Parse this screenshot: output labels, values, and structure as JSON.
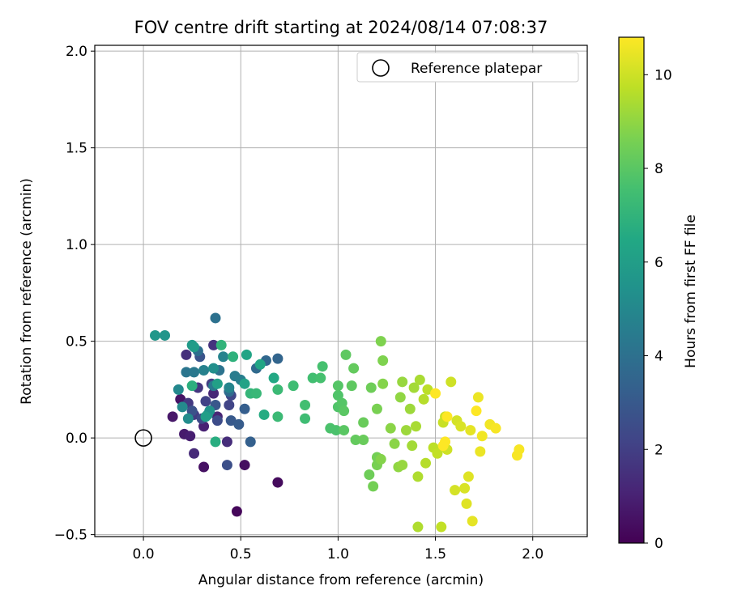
{
  "chart_data": {
    "type": "scatter",
    "title": "FOV centre drift starting at 2024/08/14 07:08:37",
    "xlabel": "Angular distance from reference (arcmin)",
    "ylabel": "Rotation from reference (arcmin)",
    "xlim": [
      -0.25,
      2.28
    ],
    "ylim": [
      -0.51,
      2.03
    ],
    "xticks": [
      0.0,
      0.5,
      1.0,
      1.5,
      2.0
    ],
    "xtick_labels": [
      "0.0",
      "0.5",
      "1.0",
      "1.5",
      "2.0"
    ],
    "yticks": [
      -0.5,
      0.0,
      0.5,
      1.0,
      1.5,
      2.0
    ],
    "ytick_labels": [
      "−0.5",
      "0.0",
      "0.5",
      "1.0",
      "1.5",
      "2.0"
    ],
    "grid": true,
    "legend": {
      "position": "upper right",
      "entries": [
        "Reference platepar"
      ]
    },
    "reference_point": {
      "x": 0.0,
      "y": 0.0,
      "label": "Reference platepar"
    },
    "colorbar": {
      "label": "Hours from first FF file",
      "colormap": "viridis",
      "range": [
        0,
        10.8
      ],
      "ticks": [
        0,
        2,
        4,
        6,
        8,
        10
      ],
      "tick_labels": [
        "0",
        "2",
        "4",
        "6",
        "8",
        "10"
      ]
    },
    "points": [
      {
        "x": 0.48,
        "y": -0.38,
        "c": 0.2
      },
      {
        "x": 0.69,
        "y": -0.23,
        "c": 0.3
      },
      {
        "x": 0.52,
        "y": -0.14,
        "c": 0.4
      },
      {
        "x": 0.31,
        "y": -0.15,
        "c": 0.5
      },
      {
        "x": 0.19,
        "y": 0.2,
        "c": 0.6
      },
      {
        "x": 0.15,
        "y": 0.11,
        "c": 0.7
      },
      {
        "x": 0.21,
        "y": 0.02,
        "c": 0.8
      },
      {
        "x": 0.24,
        "y": 0.01,
        "c": 0.9
      },
      {
        "x": 0.31,
        "y": 0.06,
        "c": 1.0
      },
      {
        "x": 0.38,
        "y": 0.11,
        "c": 1.1
      },
      {
        "x": 0.36,
        "y": 0.23,
        "c": 1.2
      },
      {
        "x": 0.26,
        "y": -0.08,
        "c": 1.3
      },
      {
        "x": 0.43,
        "y": -0.02,
        "c": 1.4
      },
      {
        "x": 0.22,
        "y": 0.43,
        "c": 1.5
      },
      {
        "x": 0.36,
        "y": 0.48,
        "c": 1.6
      },
      {
        "x": 0.28,
        "y": 0.26,
        "c": 1.7
      },
      {
        "x": 0.23,
        "y": 0.18,
        "c": 1.8
      },
      {
        "x": 0.26,
        "y": 0.12,
        "c": 1.9
      },
      {
        "x": 0.35,
        "y": 0.28,
        "c": 2.0
      },
      {
        "x": 0.32,
        "y": 0.19,
        "c": 2.1
      },
      {
        "x": 0.44,
        "y": 0.17,
        "c": 2.2
      },
      {
        "x": 0.45,
        "y": 0.22,
        "c": 2.3
      },
      {
        "x": 0.3,
        "y": 0.1,
        "c": 2.4
      },
      {
        "x": 0.38,
        "y": 0.09,
        "c": 2.5
      },
      {
        "x": 0.43,
        "y": -0.14,
        "c": 2.6
      },
      {
        "x": 0.25,
        "y": 0.14,
        "c": 2.7
      },
      {
        "x": 0.29,
        "y": 0.42,
        "c": 2.8
      },
      {
        "x": 0.37,
        "y": 0.17,
        "c": 2.9
      },
      {
        "x": 0.45,
        "y": 0.09,
        "c": 3.0
      },
      {
        "x": 0.49,
        "y": 0.07,
        "c": 3.1
      },
      {
        "x": 0.52,
        "y": 0.15,
        "c": 3.2
      },
      {
        "x": 0.55,
        "y": -0.02,
        "c": 3.3
      },
      {
        "x": 0.69,
        "y": 0.41,
        "c": 3.5
      },
      {
        "x": 0.63,
        "y": 0.4,
        "c": 3.6
      },
      {
        "x": 0.58,
        "y": 0.36,
        "c": 3.7
      },
      {
        "x": 0.44,
        "y": 0.24,
        "c": 3.8
      },
      {
        "x": 0.28,
        "y": 0.45,
        "c": 3.9
      },
      {
        "x": 0.37,
        "y": 0.62,
        "c": 4.0
      },
      {
        "x": 0.39,
        "y": 0.35,
        "c": 4.1
      },
      {
        "x": 0.22,
        "y": 0.34,
        "c": 4.2
      },
      {
        "x": 0.26,
        "y": 0.34,
        "c": 4.3
      },
      {
        "x": 0.36,
        "y": 0.27,
        "c": 4.4
      },
      {
        "x": 0.47,
        "y": 0.32,
        "c": 4.5
      },
      {
        "x": 0.5,
        "y": 0.3,
        "c": 4.6
      },
      {
        "x": 0.31,
        "y": 0.35,
        "c": 4.7
      },
      {
        "x": 0.41,
        "y": 0.42,
        "c": 4.8
      },
      {
        "x": 0.44,
        "y": 0.26,
        "c": 4.9
      },
      {
        "x": 0.18,
        "y": 0.25,
        "c": 5.0
      },
      {
        "x": 0.2,
        "y": 0.16,
        "c": 5.1
      },
      {
        "x": 0.23,
        "y": 0.1,
        "c": 5.2
      },
      {
        "x": 0.36,
        "y": 0.36,
        "c": 5.3
      },
      {
        "x": 0.33,
        "y": 0.12,
        "c": 5.4
      },
      {
        "x": 0.34,
        "y": 0.14,
        "c": 5.5
      },
      {
        "x": 0.11,
        "y": 0.53,
        "c": 5.6
      },
      {
        "x": 0.06,
        "y": 0.53,
        "c": 5.7
      },
      {
        "x": 0.25,
        "y": 0.48,
        "c": 5.8
      },
      {
        "x": 0.26,
        "y": 0.47,
        "c": 5.9
      },
      {
        "x": 0.32,
        "y": 0.11,
        "c": 6.0
      },
      {
        "x": 0.38,
        "y": 0.28,
        "c": 6.1
      },
      {
        "x": 0.52,
        "y": 0.28,
        "c": 6.2
      },
      {
        "x": 0.53,
        "y": 0.43,
        "c": 6.3
      },
      {
        "x": 0.6,
        "y": 0.38,
        "c": 6.4
      },
      {
        "x": 0.67,
        "y": 0.31,
        "c": 6.5
      },
      {
        "x": 0.62,
        "y": 0.12,
        "c": 6.6
      },
      {
        "x": 0.37,
        "y": -0.02,
        "c": 6.7
      },
      {
        "x": 0.25,
        "y": 0.27,
        "c": 6.8
      },
      {
        "x": 0.46,
        "y": 0.42,
        "c": 6.9
      },
      {
        "x": 0.4,
        "y": 0.48,
        "c": 7.0
      },
      {
        "x": 0.55,
        "y": 0.23,
        "c": 7.1
      },
      {
        "x": 0.58,
        "y": 0.23,
        "c": 7.2
      },
      {
        "x": 0.69,
        "y": 0.25,
        "c": 7.3
      },
      {
        "x": 0.69,
        "y": 0.11,
        "c": 7.3
      },
      {
        "x": 0.77,
        "y": 0.27,
        "c": 7.4
      },
      {
        "x": 0.83,
        "y": 0.1,
        "c": 7.4
      },
      {
        "x": 0.83,
        "y": 0.17,
        "c": 7.5
      },
      {
        "x": 0.87,
        "y": 0.31,
        "c": 7.5
      },
      {
        "x": 0.91,
        "y": 0.31,
        "c": 7.6
      },
      {
        "x": 0.92,
        "y": 0.37,
        "c": 7.6
      },
      {
        "x": 0.96,
        "y": 0.05,
        "c": 7.7
      },
      {
        "x": 0.99,
        "y": 0.04,
        "c": 7.7
      },
      {
        "x": 1.0,
        "y": 0.16,
        "c": 7.8
      },
      {
        "x": 1.0,
        "y": 0.22,
        "c": 7.8
      },
      {
        "x": 1.0,
        "y": 0.27,
        "c": 7.9
      },
      {
        "x": 1.02,
        "y": 0.18,
        "c": 7.9
      },
      {
        "x": 1.03,
        "y": 0.04,
        "c": 8.0
      },
      {
        "x": 1.03,
        "y": 0.14,
        "c": 8.0
      },
      {
        "x": 1.04,
        "y": 0.43,
        "c": 8.1
      },
      {
        "x": 1.07,
        "y": 0.27,
        "c": 8.1
      },
      {
        "x": 1.08,
        "y": 0.36,
        "c": 8.2
      },
      {
        "x": 1.09,
        "y": -0.01,
        "c": 8.2
      },
      {
        "x": 1.13,
        "y": -0.01,
        "c": 8.3
      },
      {
        "x": 1.13,
        "y": 0.08,
        "c": 8.3
      },
      {
        "x": 1.16,
        "y": -0.19,
        "c": 8.4
      },
      {
        "x": 1.17,
        "y": 0.26,
        "c": 8.4
      },
      {
        "x": 1.18,
        "y": -0.25,
        "c": 8.5
      },
      {
        "x": 1.2,
        "y": -0.1,
        "c": 8.5
      },
      {
        "x": 1.2,
        "y": -0.14,
        "c": 8.6
      },
      {
        "x": 1.2,
        "y": 0.15,
        "c": 8.6
      },
      {
        "x": 1.22,
        "y": 0.5,
        "c": 8.7
      },
      {
        "x": 1.23,
        "y": 0.4,
        "c": 8.7
      },
      {
        "x": 1.23,
        "y": 0.28,
        "c": 8.8
      },
      {
        "x": 1.22,
        "y": -0.11,
        "c": 8.8
      },
      {
        "x": 1.27,
        "y": 0.05,
        "c": 8.9
      },
      {
        "x": 1.29,
        "y": -0.03,
        "c": 8.9
      },
      {
        "x": 1.31,
        "y": -0.15,
        "c": 9.0
      },
      {
        "x": 1.32,
        "y": 0.21,
        "c": 9.0
      },
      {
        "x": 1.33,
        "y": 0.29,
        "c": 9.1
      },
      {
        "x": 1.33,
        "y": -0.14,
        "c": 9.1
      },
      {
        "x": 1.35,
        "y": 0.04,
        "c": 9.2
      },
      {
        "x": 1.37,
        "y": 0.15,
        "c": 9.2
      },
      {
        "x": 1.38,
        "y": -0.04,
        "c": 9.3
      },
      {
        "x": 1.39,
        "y": 0.26,
        "c": 9.3
      },
      {
        "x": 1.4,
        "y": 0.06,
        "c": 9.4
      },
      {
        "x": 1.42,
        "y": 0.3,
        "c": 9.4
      },
      {
        "x": 1.41,
        "y": -0.46,
        "c": 9.5
      },
      {
        "x": 1.41,
        "y": -0.2,
        "c": 9.5
      },
      {
        "x": 1.44,
        "y": 0.2,
        "c": 9.6
      },
      {
        "x": 1.45,
        "y": -0.13,
        "c": 9.6
      },
      {
        "x": 1.46,
        "y": 0.25,
        "c": 9.7
      },
      {
        "x": 1.49,
        "y": -0.05,
        "c": 9.7
      },
      {
        "x": 1.51,
        "y": -0.08,
        "c": 9.8
      },
      {
        "x": 1.53,
        "y": -0.46,
        "c": 9.8
      },
      {
        "x": 1.54,
        "y": 0.08,
        "c": 9.9
      },
      {
        "x": 1.55,
        "y": 0.11,
        "c": 9.9
      },
      {
        "x": 1.56,
        "y": -0.06,
        "c": 10.0
      },
      {
        "x": 1.58,
        "y": 0.29,
        "c": 10.0
      },
      {
        "x": 1.6,
        "y": -0.27,
        "c": 10.1
      },
      {
        "x": 1.61,
        "y": 0.09,
        "c": 10.1
      },
      {
        "x": 1.63,
        "y": 0.06,
        "c": 10.2
      },
      {
        "x": 1.65,
        "y": -0.26,
        "c": 10.2
      },
      {
        "x": 1.66,
        "y": -0.34,
        "c": 10.3
      },
      {
        "x": 1.67,
        "y": -0.2,
        "c": 10.3
      },
      {
        "x": 1.68,
        "y": 0.04,
        "c": 10.4
      },
      {
        "x": 1.69,
        "y": -0.43,
        "c": 10.4
      },
      {
        "x": 1.72,
        "y": 0.21,
        "c": 10.5
      },
      {
        "x": 1.73,
        "y": -0.07,
        "c": 10.5
      },
      {
        "x": 1.74,
        "y": 0.01,
        "c": 10.6
      },
      {
        "x": 1.78,
        "y": 0.07,
        "c": 10.6
      },
      {
        "x": 1.81,
        "y": 0.05,
        "c": 10.7
      },
      {
        "x": 1.92,
        "y": -0.09,
        "c": 10.7
      },
      {
        "x": 1.93,
        "y": -0.06,
        "c": 10.7
      },
      {
        "x": 1.71,
        "y": 0.14,
        "c": 10.8
      },
      {
        "x": 1.55,
        "y": -0.02,
        "c": 10.8
      },
      {
        "x": 1.54,
        "y": -0.04,
        "c": 10.8
      },
      {
        "x": 1.5,
        "y": 0.23,
        "c": 10.8
      },
      {
        "x": 1.56,
        "y": 0.11,
        "c": 10.8
      }
    ]
  }
}
